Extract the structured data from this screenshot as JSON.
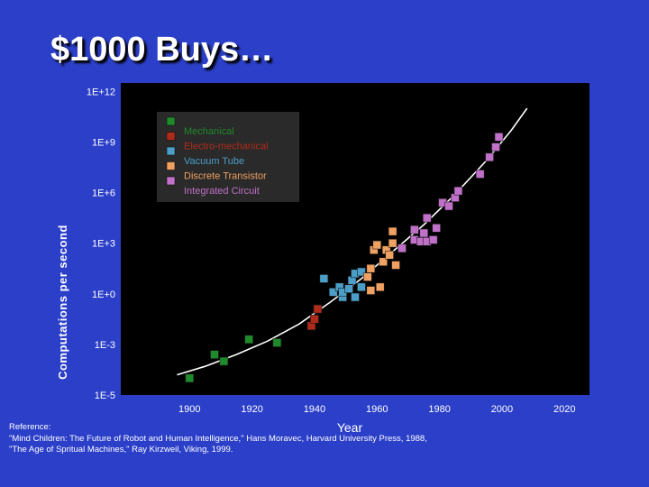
{
  "slide": {
    "title": "$1000 Buys…"
  },
  "chart_data": {
    "type": "scatter",
    "title": "",
    "xlabel": "Year",
    "ylabel": "Computations per second",
    "xlim": [
      1878,
      2028
    ],
    "x_ticks": [
      "1900",
      "1920",
      "1940",
      "1960",
      "1980",
      "2000",
      "2020"
    ],
    "y_scale": "log10",
    "ylim_log10": [
      -6,
      12.5
    ],
    "y_ticks": [
      "1E+12",
      "1E+9",
      "1E+6",
      "1E+3",
      "1E+0",
      "1E-3",
      "1E-5"
    ],
    "y_ticks_log10": [
      12,
      9,
      6,
      3,
      0,
      -3,
      -6
    ],
    "legend_position": "top-left",
    "grid": false,
    "series": [
      {
        "name": "Mechanical",
        "color": "#1e8a2a",
        "points": [
          [
            1900,
            -5.0
          ],
          [
            1908,
            -3.6
          ],
          [
            1911,
            -4.0
          ],
          [
            1919,
            -2.7
          ],
          [
            1928,
            -2.9
          ]
        ]
      },
      {
        "name": "Electro-mechanical",
        "color": "#b02a1a",
        "points": [
          [
            1939,
            -1.9
          ],
          [
            1940,
            -1.5
          ],
          [
            1941,
            -0.9
          ]
        ]
      },
      {
        "name": "Vacuum Tube",
        "color": "#4a9ec8",
        "points": [
          [
            1943,
            0.9
          ],
          [
            1946,
            0.1
          ],
          [
            1948,
            0.4
          ],
          [
            1949,
            -0.2
          ],
          [
            1949,
            0.1
          ],
          [
            1951,
            0.3
          ],
          [
            1952,
            0.8
          ],
          [
            1953,
            1.2
          ],
          [
            1953,
            -0.2
          ],
          [
            1955,
            0.4
          ],
          [
            1955,
            1.3
          ]
        ]
      },
      {
        "name": "Discrete Transistor",
        "color": "#f0a060",
        "points": [
          [
            1957,
            1.0
          ],
          [
            1958,
            0.2
          ],
          [
            1958,
            1.5
          ],
          [
            1959,
            2.6
          ],
          [
            1960,
            2.9
          ],
          [
            1961,
            0.4
          ],
          [
            1962,
            1.9
          ],
          [
            1963,
            2.6
          ],
          [
            1964,
            2.3
          ],
          [
            1965,
            3.0
          ],
          [
            1965,
            3.7
          ],
          [
            1966,
            1.7
          ]
        ]
      },
      {
        "name": "Integrated Circuit",
        "color": "#c070c8",
        "points": [
          [
            1968,
            2.7
          ],
          [
            1972,
            3.8
          ],
          [
            1972,
            3.2
          ],
          [
            1974,
            3.1
          ],
          [
            1975,
            3.6
          ],
          [
            1976,
            3.1
          ],
          [
            1976,
            4.5
          ],
          [
            1978,
            3.2
          ],
          [
            1979,
            3.9
          ],
          [
            1981,
            5.4
          ],
          [
            1983,
            5.2
          ],
          [
            1985,
            5.7
          ],
          [
            1986,
            6.1
          ],
          [
            1993,
            7.1
          ],
          [
            1996,
            8.1
          ],
          [
            1998,
            8.7
          ],
          [
            1999,
            9.3
          ]
        ]
      }
    ],
    "trend_curve_log10": [
      [
        1896,
        -4.8
      ],
      [
        1905,
        -4.3
      ],
      [
        1915,
        -3.6
      ],
      [
        1925,
        -2.8
      ],
      [
        1935,
        -1.8
      ],
      [
        1945,
        -0.5
      ],
      [
        1955,
        0.9
      ],
      [
        1965,
        2.5
      ],
      [
        1975,
        4.1
      ],
      [
        1985,
        5.9
      ],
      [
        1995,
        7.9
      ],
      [
        2003,
        9.7
      ],
      [
        2008,
        11.0
      ]
    ]
  },
  "reference": {
    "heading": "Reference:",
    "line1": "\"Mind Children: The Future of Robot and Human Intelligence,\" Hans Moravec, Harvard University Press, 1988,",
    "line2": "\"The Age of Spritual Machines,\" Ray Kirzweil, Viking, 1999."
  }
}
